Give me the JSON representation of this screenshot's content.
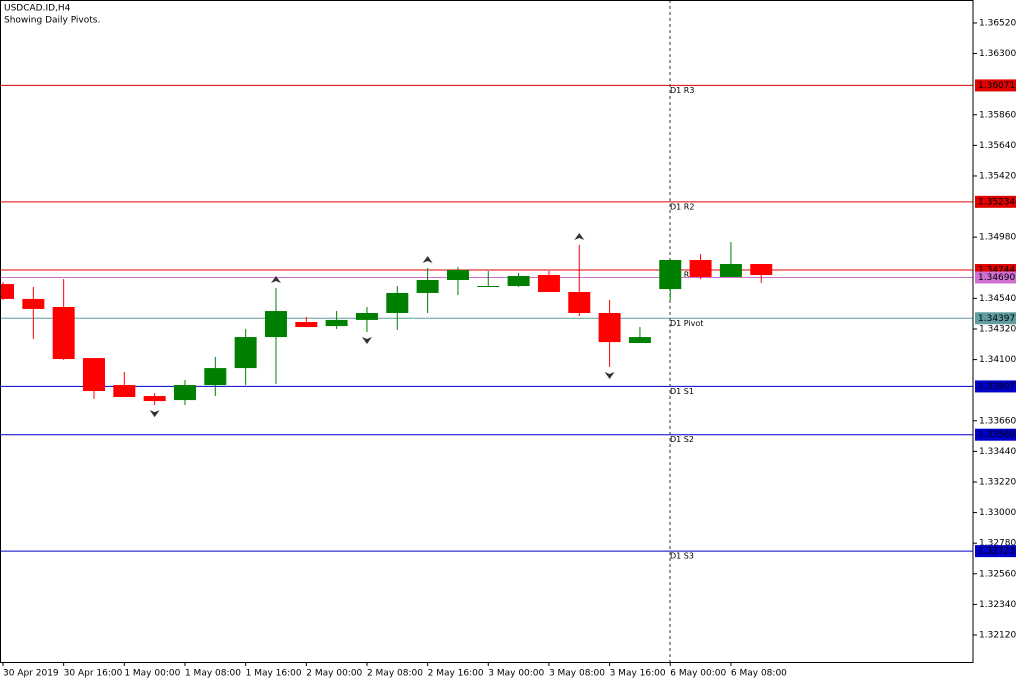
{
  "chart_data": {
    "type": "candlestick",
    "title": "USDCAD.ID,H4",
    "subtitle": "Showing Daily Pivots.",
    "categories": [
      "30 Apr 2019",
      null,
      "30 Apr 16:00",
      null,
      "1 May 00:00",
      null,
      "1 May 08:00",
      null,
      "1 May 16:00",
      null,
      "2 May 00:00",
      null,
      "2 May 08:00",
      null,
      "2 May 16:00",
      null,
      "3 May 00:00",
      null,
      "3 May 08:00",
      null,
      "3 May 16:00",
      null,
      "6 May 00:00",
      null,
      "6 May 08:00",
      null
    ],
    "open": [
      1.34643,
      1.34536,
      1.34478,
      1.34111,
      1.33917,
      1.33838,
      1.33809,
      1.33917,
      1.34039,
      1.34262,
      1.3437,
      1.34341,
      1.34385,
      1.34435,
      1.34579,
      1.34672,
      1.34622,
      1.34629,
      1.34708,
      1.34586,
      1.34435,
      1.34219,
      1.34607,
      1.34816,
      1.34694,
      1.34787
    ],
    "high": [
      1.34658,
      1.34622,
      1.34679,
      1.34111,
      1.34011,
      1.3386,
      1.33953,
      1.34119,
      1.3432,
      1.34615,
      1.34406,
      1.34449,
      1.34478,
      1.34629,
      1.34758,
      1.34766,
      1.34737,
      1.34723,
      1.34737,
      1.34924,
      1.34528,
      1.34334,
      1.34823,
      1.34859,
      1.34945,
      1.34787
    ],
    "low": [
      1.34528,
      1.34248,
      1.34097,
      1.33817,
      1.33831,
      1.33773,
      1.33773,
      1.33838,
      1.33917,
      1.33924,
      1.34334,
      1.3432,
      1.34298,
      1.34313,
      1.34435,
      1.34564,
      1.34622,
      1.34622,
      1.34586,
      1.34413,
      1.34047,
      1.34219,
      1.34528,
      1.34679,
      1.34694,
      1.34651
    ],
    "close": [
      1.34536,
      1.34464,
      1.34104,
      1.33874,
      1.33831,
      1.33802,
      1.33917,
      1.34039,
      1.34262,
      1.34449,
      1.34334,
      1.34385,
      1.34435,
      1.34579,
      1.34672,
      1.34744,
      1.34629,
      1.34701,
      1.34586,
      1.34435,
      1.34226,
      1.34262,
      1.34816,
      1.34694,
      1.34787,
      1.34708
    ],
    "fractals": [
      null,
      null,
      null,
      null,
      null,
      "down",
      null,
      null,
      null,
      "up",
      null,
      null,
      "down",
      null,
      "up",
      null,
      null,
      null,
      null,
      "up",
      "down",
      null,
      null,
      null,
      null,
      null
    ],
    "up_color": "#008000",
    "down_color": "#ff0000",
    "ylim": [
      1.31926,
      1.36685
    ],
    "yticks": [
      {
        "value": 1.3652,
        "label": "1.36520"
      },
      {
        "value": 1.363,
        "label": "1.36300"
      },
      {
        "value": 1.3586,
        "label": "1.35860"
      },
      {
        "value": 1.3564,
        "label": "1.35640"
      },
      {
        "value": 1.3542,
        "label": "1.35420"
      },
      {
        "value": 1.3498,
        "label": "1.34980"
      },
      {
        "value": 1.3454,
        "label": "1.34540"
      },
      {
        "value": 1.3432,
        "label": "1.34320"
      },
      {
        "value": 1.341,
        "label": "1.34100"
      },
      {
        "value": 1.3366,
        "label": "1.33660"
      },
      {
        "value": 1.3344,
        "label": "1.33440"
      },
      {
        "value": 1.3322,
        "label": "1.33220"
      },
      {
        "value": 1.33,
        "label": "1.33000"
      },
      {
        "value": 1.3278,
        "label": "1.32780"
      },
      {
        "value": 1.3256,
        "label": "1.32560"
      },
      {
        "value": 1.3234,
        "label": "1.32340"
      },
      {
        "value": 1.3212,
        "label": "1.32120"
      }
    ],
    "levels": [
      {
        "name": "D1 R3",
        "value": 1.36071,
        "label": "1.36071",
        "color": "#e00000"
      },
      {
        "name": "D1 R2",
        "value": 1.35234,
        "label": "1.35234",
        "color": "#e00000"
      },
      {
        "name": "D1 R1",
        "value": 1.34744,
        "label": "1.34744",
        "color": "#e00000"
      },
      {
        "value": 1.3469,
        "label": "1.34690",
        "color": "#d070d0"
      },
      {
        "name": "D1 Pivot",
        "value": 1.34397,
        "label": "1.34397",
        "color": "#5f9ea0"
      },
      {
        "name": "D1 S1",
        "value": 1.33907,
        "label": "1.33907",
        "color": "#0000c8"
      },
      {
        "name": "D1 S2",
        "value": 1.3356,
        "label": "1.33560",
        "color": "#0000c8"
      },
      {
        "name": "D1 S3",
        "value": 1.32723,
        "label": "1.32723",
        "color": "#0000c8"
      }
    ]
  }
}
